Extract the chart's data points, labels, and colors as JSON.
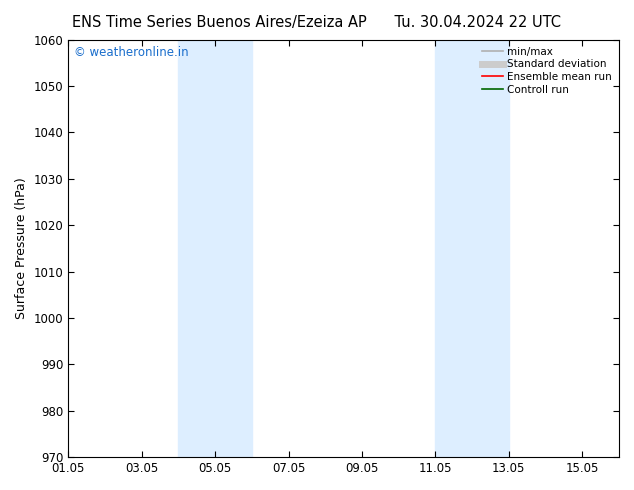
{
  "title_left": "ENS Time Series Buenos Aires/Ezeiza AP",
  "title_right": "Tu. 30.04.2024 22 UTC",
  "ylabel": "Surface Pressure (hPa)",
  "ylim": [
    970,
    1060
  ],
  "yticks": [
    970,
    980,
    990,
    1000,
    1010,
    1020,
    1030,
    1040,
    1050,
    1060
  ],
  "xlim": [
    0,
    15
  ],
  "xtick_labels": [
    "01.05",
    "03.05",
    "05.05",
    "07.05",
    "09.05",
    "11.05",
    "13.05",
    "15.05"
  ],
  "xtick_positions": [
    0,
    2,
    4,
    6,
    8,
    10,
    12,
    14
  ],
  "shaded_bands": [
    {
      "x_start": 3.0,
      "x_end": 5.0,
      "color": "#ddeeff"
    },
    {
      "x_start": 10.0,
      "x_end": 12.0,
      "color": "#ddeeff"
    }
  ],
  "watermark_text": "© weatheronline.in",
  "watermark_color": "#1a6ecc",
  "legend_items": [
    {
      "label": "min/max",
      "color": "#b0b0b0",
      "lw": 1.2,
      "linestyle": "-"
    },
    {
      "label": "Standard deviation",
      "color": "#cccccc",
      "lw": 5,
      "linestyle": "-"
    },
    {
      "label": "Ensemble mean run",
      "color": "#ff0000",
      "lw": 1.2,
      "linestyle": "-"
    },
    {
      "label": "Controll run",
      "color": "#006600",
      "lw": 1.2,
      "linestyle": "-"
    }
  ],
  "bg_color": "#ffffff",
  "title_fontsize": 10.5,
  "axis_label_fontsize": 9,
  "tick_fontsize": 8.5,
  "watermark_fontsize": 8.5,
  "legend_fontsize": 7.5
}
